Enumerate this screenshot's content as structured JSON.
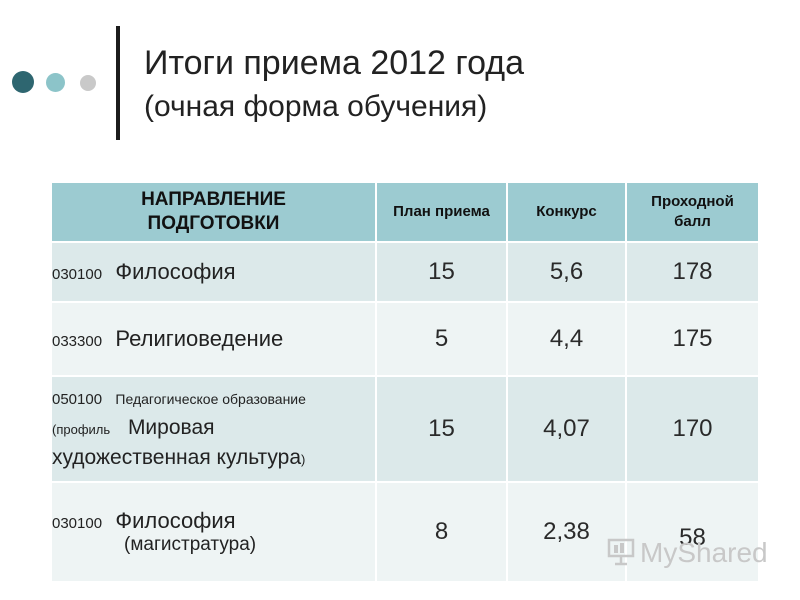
{
  "header": {
    "title_line1": "Итоги приема 2012 года",
    "title_line2": "(очная форма обучения)"
  },
  "table": {
    "columns": [
      "НАПРАВЛЕНИЕ ПОДГОТОВКИ",
      "План приема",
      "Конкурс",
      "Проходной балл"
    ],
    "header_lines": {
      "direction": [
        "НАПРАВЛЕНИЕ",
        "ПОДГОТОВКИ"
      ],
      "score": [
        "Проходной",
        "балл"
      ]
    },
    "rows": [
      {
        "code": "030100",
        "name": "Философия",
        "plan": "15",
        "competition": "5,6",
        "score": "178"
      },
      {
        "code": "033300",
        "name": "Религиоведение",
        "plan": "5",
        "competition": "4,4",
        "score": "175"
      },
      {
        "code": "050100",
        "name": "Педагогическое образование",
        "profile_prefix": "(профиль",
        "profile_name_line1": "Мировая",
        "profile_name_line2": "художественная культура",
        "profile_suffix": ")",
        "plan": "15",
        "competition": "4,07",
        "score": "170"
      },
      {
        "code": "030100",
        "name": "Философия",
        "note": "(магистратура)",
        "plan": "8",
        "competition": "2,38",
        "score": "58"
      }
    ]
  },
  "watermark": {
    "text": "MyShared",
    "icon": "presentation-icon"
  },
  "colors": {
    "header_bg": "#9ccbd1",
    "row_dark": "#dce9ea",
    "row_light": "#eef4f4",
    "dot1": "#2e6670",
    "dot2": "#8cc4c9",
    "dot3": "#c9c9c9"
  }
}
